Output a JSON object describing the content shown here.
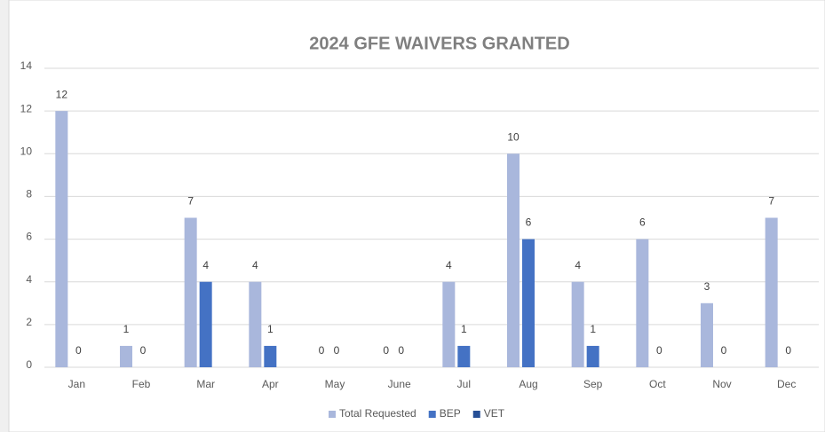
{
  "chart_data": {
    "type": "bar",
    "title": "2024 GFE WAIVERS GRANTED",
    "categories": [
      "Jan",
      "Feb",
      "Mar",
      "Apr",
      "May",
      "June",
      "Jul",
      "Aug",
      "Sep",
      "Oct",
      "Nov",
      "Dec"
    ],
    "series": [
      {
        "name": "Total Requested",
        "color": "#a9b7dc",
        "values": [
          12,
          1,
          7,
          4,
          0,
          0,
          4,
          10,
          4,
          6,
          3,
          7
        ]
      },
      {
        "name": "BEP",
        "color": "#4472c4",
        "values": [
          0,
          0,
          4,
          1,
          0,
          0,
          1,
          6,
          1,
          0,
          0,
          0
        ]
      },
      {
        "name": "VET",
        "color": "#264f96",
        "values": [
          null,
          null,
          null,
          null,
          null,
          null,
          null,
          null,
          null,
          null,
          null,
          null
        ]
      }
    ],
    "ylim": [
      0,
      14
    ],
    "yticks": [
      0,
      2,
      4,
      6,
      8,
      10,
      12,
      14
    ],
    "grid": true,
    "legend": "bottom"
  }
}
